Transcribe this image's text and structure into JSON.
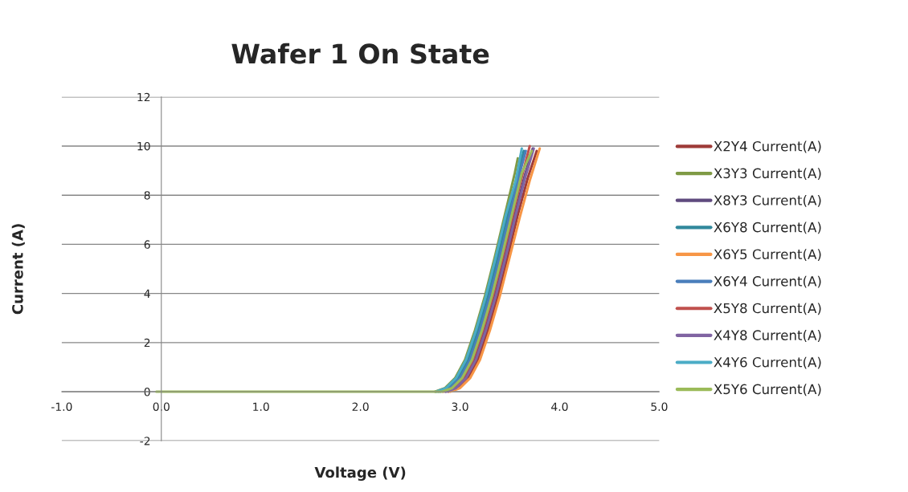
{
  "chart_data": {
    "type": "line",
    "title": "Wafer 1 On State",
    "xlabel": "Voltage (V)",
    "ylabel": "Current (A)",
    "xlim": [
      -1.0,
      5.0
    ],
    "xticks": [
      {
        "value": -1,
        "label": "-1.0"
      },
      {
        "value": 0,
        "label": "0.0"
      },
      {
        "value": 1,
        "label": "1.0"
      },
      {
        "value": 2,
        "label": "2.0"
      },
      {
        "value": 3,
        "label": "3.0"
      },
      {
        "value": 4,
        "label": "4.0"
      },
      {
        "value": 5,
        "label": "5.0"
      }
    ],
    "ylim": [
      -2,
      12
    ],
    "yticks": [
      -2,
      0,
      2,
      4,
      6,
      8,
      10,
      12
    ],
    "grid": "y",
    "legend": "right",
    "marker": "none",
    "line_style": "solid",
    "series": [
      {
        "name": "X2Y4 Current(A)",
        "color": "#9e3b38",
        "x": [
          2.88,
          2.98,
          3.08,
          3.18,
          3.28,
          3.38,
          3.48,
          3.58,
          3.68,
          3.77
        ],
        "values": [
          0,
          0.15,
          0.55,
          1.3,
          2.5,
          3.9,
          5.5,
          7.2,
          8.7,
          9.8
        ]
      },
      {
        "name": "X3Y3 Current(A)",
        "color": "#7f9a45",
        "x": [
          2.75,
          2.85,
          2.95,
          3.05,
          3.15,
          3.25,
          3.35,
          3.45,
          3.55,
          3.58
        ],
        "values": [
          0,
          0.15,
          0.55,
          1.3,
          2.5,
          3.9,
          5.5,
          7.2,
          8.9,
          9.5
        ]
      },
      {
        "name": "X8Y3 Current(A)",
        "color": "#5f4a7e",
        "x": [
          2.85,
          2.95,
          3.05,
          3.15,
          3.25,
          3.35,
          3.45,
          3.55,
          3.65,
          3.73
        ],
        "values": [
          0,
          0.15,
          0.55,
          1.3,
          2.5,
          3.9,
          5.5,
          7.2,
          8.8,
          9.9
        ]
      },
      {
        "name": "X6Y8 Current(A)",
        "color": "#31889c",
        "x": [
          2.78,
          2.88,
          2.98,
          3.08,
          3.18,
          3.28,
          3.38,
          3.48,
          3.58,
          3.64
        ],
        "values": [
          0,
          0.15,
          0.55,
          1.3,
          2.5,
          3.9,
          5.5,
          7.2,
          8.9,
          9.8
        ]
      },
      {
        "name": "X6Y5 Current(A)",
        "color": "#f79646",
        "x": [
          2.9,
          3.0,
          3.1,
          3.2,
          3.3,
          3.4,
          3.5,
          3.6,
          3.7,
          3.8
        ],
        "values": [
          0,
          0.15,
          0.55,
          1.3,
          2.5,
          3.9,
          5.5,
          7.1,
          8.6,
          9.9
        ]
      },
      {
        "name": "X6Y4 Current(A)",
        "color": "#4a7ebb",
        "x": [
          2.8,
          2.9,
          3.0,
          3.1,
          3.2,
          3.3,
          3.4,
          3.5,
          3.6,
          3.66
        ],
        "values": [
          0,
          0.15,
          0.55,
          1.3,
          2.5,
          3.9,
          5.5,
          7.2,
          8.9,
          9.8
        ]
      },
      {
        "name": "X5Y8 Current(A)",
        "color": "#c0504d",
        "x": [
          2.83,
          2.93,
          3.03,
          3.13,
          3.23,
          3.33,
          3.43,
          3.53,
          3.63,
          3.7
        ],
        "values": [
          0,
          0.15,
          0.55,
          1.3,
          2.5,
          3.9,
          5.5,
          7.2,
          8.9,
          10.0
        ]
      },
      {
        "name": "X4Y8 Current(A)",
        "color": "#8064a2",
        "x": [
          2.86,
          2.96,
          3.06,
          3.16,
          3.26,
          3.36,
          3.46,
          3.56,
          3.66,
          3.74
        ],
        "values": [
          0,
          0.15,
          0.55,
          1.3,
          2.5,
          3.9,
          5.5,
          7.2,
          8.8,
          9.9
        ]
      },
      {
        "name": "X4Y6 Current(A)",
        "color": "#4bacc6",
        "x": [
          2.76,
          2.86,
          2.96,
          3.06,
          3.16,
          3.26,
          3.36,
          3.46,
          3.56,
          3.62
        ],
        "values": [
          0,
          0.15,
          0.55,
          1.3,
          2.5,
          3.9,
          5.5,
          7.2,
          8.6,
          9.9
        ]
      },
      {
        "name": "X5Y6 Current(A)",
        "color": "#9bbb59",
        "x": [
          -0.05,
          1.0,
          2.0,
          2.82,
          2.92,
          3.02,
          3.12,
          3.22,
          3.32,
          3.42,
          3.52,
          3.62,
          3.72
        ],
        "values": [
          0,
          0,
          0,
          0,
          0.15,
          0.55,
          1.3,
          2.5,
          3.9,
          5.5,
          7.2,
          8.9,
          9.8
        ]
      }
    ]
  }
}
